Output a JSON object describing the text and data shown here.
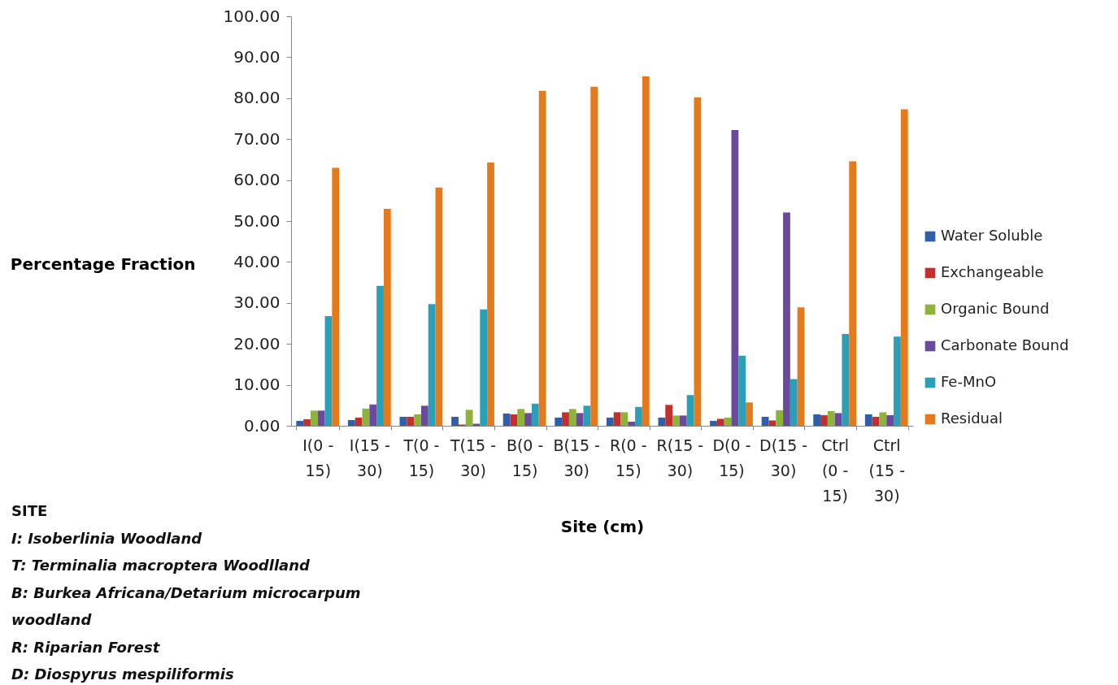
{
  "chart_data": {
    "type": "bar",
    "xlabel": "Site (cm)",
    "ylabel": "Percentage Fraction",
    "categories": [
      "I(0 - 15)",
      "I(15 - 30)",
      "T(0 - 15)",
      "T(15 - 30)",
      "B(0 - 15)",
      "B(15 - 30)",
      "R(0 - 15)",
      "R(15 - 30)",
      "D(0 - 15)",
      "D(15 - 30)",
      "Ctrl (0 - 15)",
      "Ctrl (15 - 30)"
    ],
    "series": [
      {
        "name": "Water Soluble",
        "color": "#2e5fa8",
        "values": [
          1.2,
          1.4,
          2.2,
          2.2,
          3.0,
          2.0,
          2.0,
          2.0,
          1.2,
          2.2,
          2.8,
          2.8
        ]
      },
      {
        "name": "Exchangeable",
        "color": "#c0302e",
        "values": [
          1.6,
          2.0,
          2.2,
          0.3,
          2.8,
          3.3,
          3.3,
          5.1,
          1.7,
          1.3,
          2.6,
          2.2
        ]
      },
      {
        "name": "Organic Bound",
        "color": "#8db33a",
        "values": [
          3.7,
          4.2,
          2.8,
          3.9,
          4.1,
          4.1,
          3.3,
          2.5,
          2.0,
          3.8,
          3.6,
          3.3
        ]
      },
      {
        "name": "Carbonate Bound",
        "color": "#6a4a9a",
        "values": [
          3.7,
          5.2,
          4.9,
          0.5,
          3.1,
          3.1,
          1.0,
          2.5,
          72.2,
          52.1,
          3.1,
          2.6
        ]
      },
      {
        "name": "Fe-MnO",
        "color": "#2aa0b8",
        "values": [
          26.8,
          34.2,
          29.7,
          28.4,
          5.4,
          4.9,
          4.6,
          7.5,
          17.1,
          11.4,
          22.4,
          21.8
        ]
      },
      {
        "name": "Residual",
        "color": "#e47a1c",
        "values": [
          63.0,
          53.0,
          58.2,
          64.3,
          81.8,
          82.8,
          85.3,
          80.2,
          5.7,
          28.9,
          64.6,
          77.3
        ]
      }
    ],
    "ylim": [
      0,
      100
    ],
    "yticks": [
      {
        "value": 0,
        "label": "0.00"
      },
      {
        "value": 10,
        "label": "10.00"
      },
      {
        "value": 20,
        "label": "20.00"
      },
      {
        "value": 30,
        "label": "30.00"
      },
      {
        "value": 40,
        "label": "40.00"
      },
      {
        "value": 50,
        "label": "50.00"
      },
      {
        "value": 60,
        "label": "60.00"
      },
      {
        "value": 70,
        "label": "70.00"
      },
      {
        "value": 80,
        "label": "80.00"
      },
      {
        "value": 90,
        "label": "90.00"
      },
      {
        "value": 100,
        "label": "100.00"
      }
    ],
    "grid": false,
    "legend": "right",
    "annotations": [
      "SITE",
      "I: Isoberlinia Woodland",
      "T: Terminalia macroptera  Woodlland",
      "B: Burkea Africana/Detarium microcarpum woodland",
      "R: Riparian Forest",
      "D: Diospyrus mespiliformis"
    ]
  }
}
